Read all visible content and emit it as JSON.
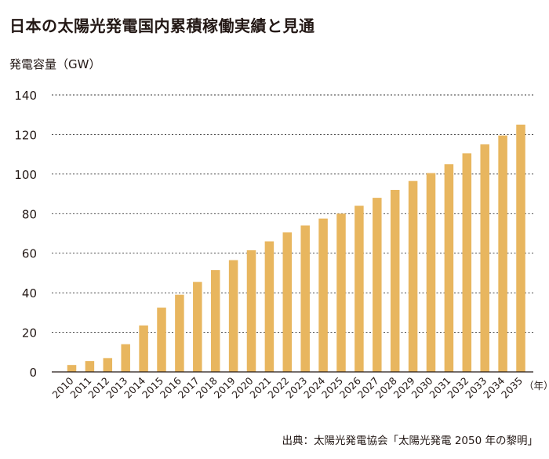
{
  "title": "日本の太陽光発電国内累積稼働実績と見通",
  "y_axis_label": "発電容量（GW）",
  "x_unit_label": "（年）",
  "source": "出典：太陽光発電協会「太陽光発電 2050 年の黎明」",
  "colors": {
    "bar": "#e8b65f",
    "grid": "#333333",
    "axis": "#231815"
  },
  "chart_data": {
    "type": "bar",
    "title": "日本の太陽光発電国内累積稼働実績と見通",
    "xlabel": "（年）",
    "ylabel": "発電容量（GW）",
    "ylim": [
      0,
      140
    ],
    "yticks": [
      0,
      20,
      40,
      60,
      80,
      100,
      120,
      140
    ],
    "grid": true,
    "categories": [
      "2010",
      "2011",
      "2012",
      "2013",
      "2014",
      "2015",
      "2016",
      "2017",
      "2018",
      "2019",
      "2020",
      "2021",
      "2022",
      "2023",
      "2024",
      "2025",
      "2026",
      "2027",
      "2028",
      "2029",
      "2030",
      "2031",
      "2032",
      "2033",
      "2034",
      "2035"
    ],
    "values": [
      3.5,
      5.5,
      7,
      14,
      23.5,
      32.5,
      39,
      45.5,
      51.5,
      56.5,
      61.5,
      66,
      70.5,
      74,
      77.5,
      80,
      84,
      88,
      92,
      96.5,
      100.5,
      105,
      110.5,
      115,
      119.5,
      125
    ]
  }
}
